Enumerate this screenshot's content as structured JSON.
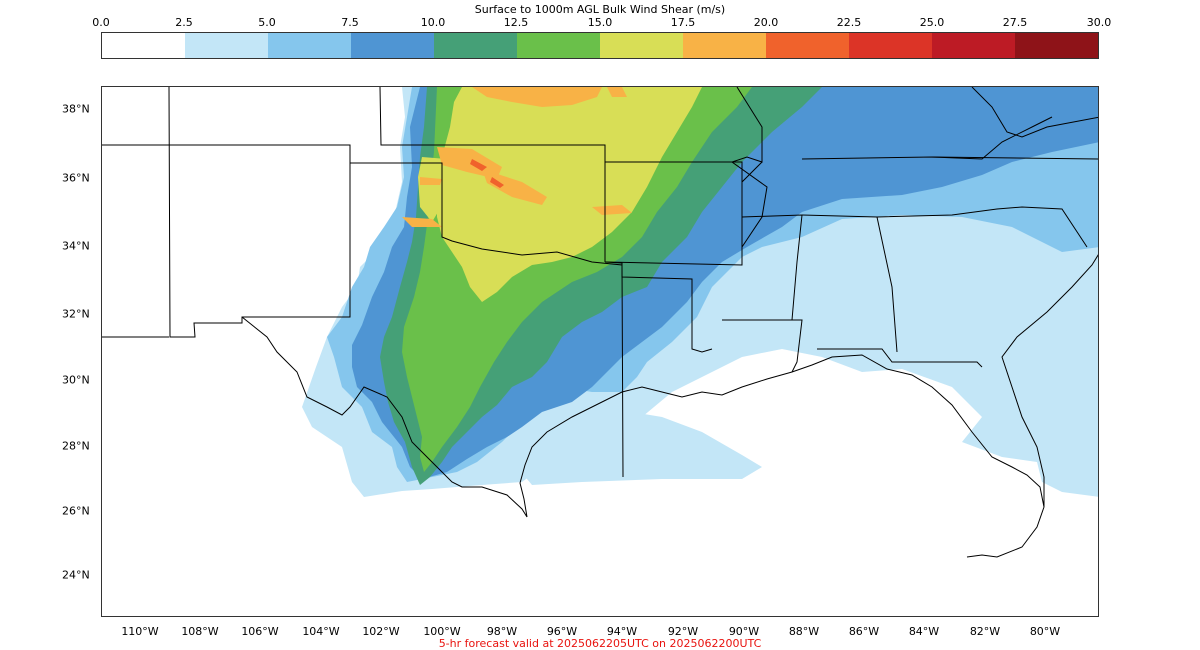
{
  "colorbar": {
    "title": "Surface to 1000m AGL Bulk Wind Shear (m/s)",
    "ticks": [
      "0.0",
      "2.5",
      "5.0",
      "7.5",
      "10.0",
      "12.5",
      "15.0",
      "17.5",
      "20.0",
      "22.5",
      "25.0",
      "27.5",
      "30.0"
    ],
    "colors": [
      "#ffffff",
      "#c3e6f7",
      "#85c6ed",
      "#4f95d3",
      "#45a077",
      "#6ac04a",
      "#d8de56",
      "#f8b246",
      "#f0622c",
      "#dc3427",
      "#bd1b25",
      "#8e1318"
    ]
  },
  "map": {
    "lat_labels": [
      "38°N",
      "36°N",
      "34°N",
      "32°N",
      "30°N",
      "28°N",
      "26°N",
      "24°N"
    ],
    "lon_labels": [
      "110°W",
      "108°W",
      "106°W",
      "104°W",
      "102°W",
      "100°W",
      "98°W",
      "96°W",
      "94°W",
      "92°W",
      "90°W",
      "88°W",
      "86°W",
      "84°W",
      "82°W",
      "80°W"
    ]
  },
  "footer": {
    "text": "5-hr forecast valid at 2025062205UTC on 2025062200UTC",
    "color": "#e8130f"
  }
}
